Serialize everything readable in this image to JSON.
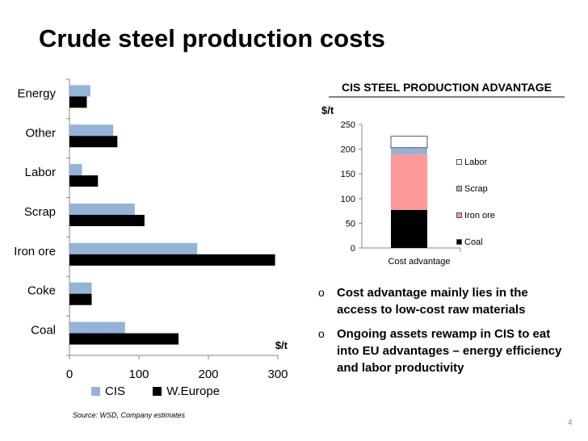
{
  "title": "Crude steel production costs",
  "source": "Source: WSD, Company estimates",
  "page_number": "4",
  "bullets": [
    "Cost advantage mainly lies in the access to low-cost raw materials",
    "Ongoing assets rewamp in CIS to eat into EU advantages – energy efficiency and labor productivity"
  ],
  "bullet_marker": "o",
  "chart_data": [
    {
      "type": "bar",
      "orientation": "horizontal",
      "categories": [
        "Energy",
        "Other",
        "Labor",
        "Scrap",
        "Iron ore",
        "Coke",
        "Coal"
      ],
      "series": [
        {
          "name": "CIS",
          "values": [
            30,
            63,
            18,
            94,
            184,
            32,
            80
          ],
          "color": "#95b3d7"
        },
        {
          "name": "W.Europe",
          "values": [
            25,
            69,
            41,
            108,
            296,
            32,
            157
          ],
          "color": "#000000"
        }
      ],
      "xlabel": "$/t",
      "xlim": [
        0,
        300
      ],
      "xticks": [
        "0",
        "100",
        "200",
        "300"
      ],
      "grid": false,
      "legend_position": "bottom"
    },
    {
      "type": "bar",
      "stacked": true,
      "title": "CIS STEEL PRODUCTION ADVANTAGE",
      "ylabel": "$/t",
      "categories": [
        "Cost advantage"
      ],
      "series": [
        {
          "name": "Coal",
          "values": [
            77
          ],
          "color": "#000000"
        },
        {
          "name": "Iron ore",
          "values": [
            112
          ],
          "color": "#ff9999"
        },
        {
          "name": "Scrap",
          "values": [
            14
          ],
          "color": "#95b3d7"
        },
        {
          "name": "Labor",
          "values": [
            23
          ],
          "color": "#ffffff"
        }
      ],
      "ylim": [
        0,
        250
      ],
      "yticks": [
        "0",
        "50",
        "100",
        "150",
        "200",
        "250"
      ],
      "grid": false,
      "legend_position": "right"
    }
  ]
}
